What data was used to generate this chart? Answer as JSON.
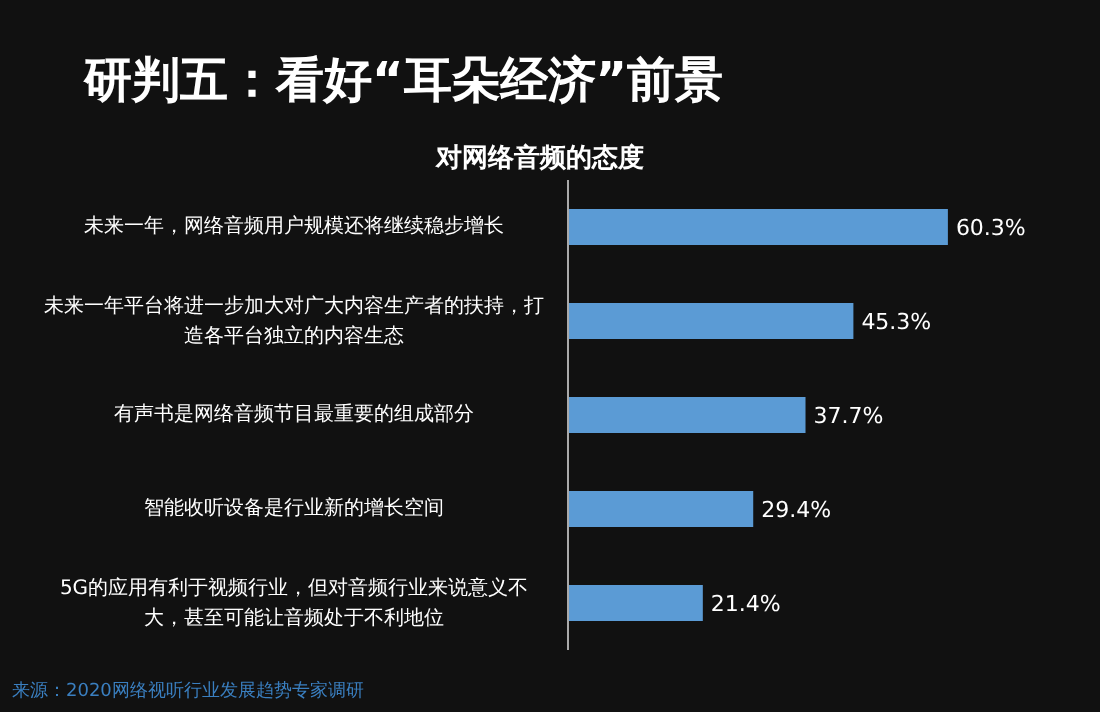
{
  "chart_data": {
    "type": "bar",
    "orientation": "horizontal",
    "title": "研判五：看好“耳朵经济”前景",
    "subtitle": "对网络音频的态度",
    "categories": [
      "未来一年，网络音频用户规模还将继续稳步增长",
      "未来一年平台将进一步加大对广大内容生产者的扶持，打造各平台独立的内容生态",
      "有声书是网络音频节目最重要的组成部分",
      "智能收听设备是行业新的增长空间",
      "5G的应用有利于视频行业，但对音频行业来说意义不大，甚至可能让音频处于不利地位"
    ],
    "values": [
      60.3,
      45.3,
      37.7,
      29.4,
      21.4
    ],
    "value_labels": [
      "60.3%",
      "45.3%",
      "37.7%",
      "29.4%",
      "21.4%"
    ],
    "color": "#5b9bd5",
    "annotations": [
      "来源：2020网络视听行业发展趋势专家调研"
    ]
  }
}
